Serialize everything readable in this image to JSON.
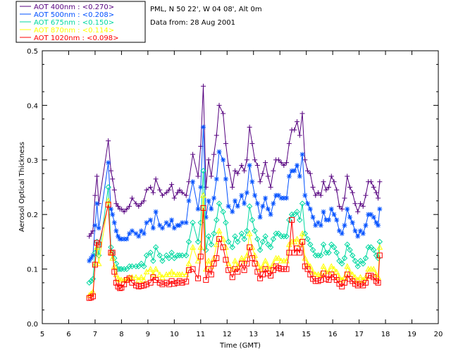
{
  "info": {
    "site": "PML, N 50 22', W 04 08', Alt 0m",
    "date": "Data from: 28 Aug 2001"
  },
  "chart_data": {
    "type": "line",
    "title": "",
    "xlabel": "Time (GMT)",
    "ylabel": "Aerosol Optical Thickness",
    "xlim": [
      5,
      20
    ],
    "ylim": [
      0.0,
      0.5
    ],
    "xticks": [
      5,
      6,
      7,
      8,
      9,
      10,
      11,
      12,
      13,
      14,
      15,
      16,
      17,
      18,
      19,
      20
    ],
    "yticks": [
      "0.0",
      "0.1",
      "0.2",
      "0.3",
      "0.4",
      "0.5"
    ],
    "x": [
      6.78,
      6.85,
      6.92,
      7.0,
      7.07,
      7.14,
      7.5,
      7.6,
      7.66,
      7.73,
      7.8,
      7.87,
      7.94,
      8.0,
      8.1,
      8.2,
      8.3,
      8.4,
      8.55,
      8.65,
      8.75,
      8.85,
      8.95,
      9.1,
      9.2,
      9.3,
      9.45,
      9.55,
      9.7,
      9.8,
      9.9,
      10.0,
      10.12,
      10.2,
      10.3,
      10.45,
      10.55,
      10.7,
      10.9,
      11.0,
      11.1,
      11.2,
      11.3,
      11.4,
      11.5,
      11.6,
      11.7,
      11.85,
      11.95,
      12.05,
      12.2,
      12.3,
      12.4,
      12.55,
      12.65,
      12.75,
      12.85,
      12.95,
      13.05,
      13.15,
      13.25,
      13.35,
      13.45,
      13.55,
      13.65,
      13.75,
      13.85,
      13.95,
      14.05,
      14.15,
      14.25,
      14.35,
      14.45,
      14.55,
      14.65,
      14.75,
      14.85,
      14.95,
      15.05,
      15.15,
      15.25,
      15.35,
      15.45,
      15.55,
      15.65,
      15.75,
      15.85,
      15.95,
      16.05,
      16.15,
      16.25,
      16.35,
      16.45,
      16.55,
      16.65,
      16.75,
      16.85,
      16.95,
      17.05,
      17.15,
      17.25,
      17.35,
      17.45,
      17.55,
      17.65,
      17.72,
      17.78
    ],
    "series": [
      {
        "name": "AOT  400nm : <0.270>",
        "color": "#55007f",
        "marker": "plus",
        "values": [
          0.16,
          0.165,
          0.17,
          0.235,
          0.27,
          0.22,
          0.335,
          0.28,
          0.265,
          0.245,
          0.22,
          0.215,
          0.21,
          0.21,
          0.205,
          0.21,
          0.215,
          0.23,
          0.22,
          0.215,
          0.22,
          0.225,
          0.245,
          0.25,
          0.24,
          0.265,
          0.245,
          0.235,
          0.24,
          0.245,
          0.255,
          0.23,
          0.24,
          0.245,
          0.24,
          0.235,
          0.26,
          0.31,
          0.27,
          0.325,
          0.435,
          0.25,
          0.3,
          0.27,
          0.31,
          0.345,
          0.4,
          0.385,
          0.33,
          0.29,
          0.25,
          0.28,
          0.275,
          0.29,
          0.28,
          0.3,
          0.36,
          0.33,
          0.3,
          0.29,
          0.26,
          0.275,
          0.295,
          0.27,
          0.25,
          0.28,
          0.3,
          0.3,
          0.295,
          0.29,
          0.295,
          0.33,
          0.355,
          0.355,
          0.37,
          0.345,
          0.385,
          0.3,
          0.28,
          0.275,
          0.25,
          0.235,
          0.24,
          0.235,
          0.26,
          0.245,
          0.25,
          0.27,
          0.26,
          0.245,
          0.215,
          0.21,
          0.23,
          0.27,
          0.25,
          0.24,
          0.22,
          0.205,
          0.22,
          0.215,
          0.235,
          0.26,
          0.26,
          0.25,
          0.24,
          0.23,
          0.26
        ]
      },
      {
        "name": "AOT  500nm : <0.208>",
        "color": "#0050ff",
        "marker": "star",
        "values": [
          0.115,
          0.12,
          0.125,
          0.18,
          0.22,
          0.175,
          0.295,
          0.21,
          0.2,
          0.185,
          0.17,
          0.16,
          0.155,
          0.155,
          0.155,
          0.155,
          0.165,
          0.17,
          0.165,
          0.16,
          0.17,
          0.165,
          0.185,
          0.19,
          0.175,
          0.205,
          0.18,
          0.175,
          0.185,
          0.18,
          0.19,
          0.175,
          0.18,
          0.18,
          0.185,
          0.185,
          0.225,
          0.26,
          0.21,
          0.25,
          0.36,
          0.195,
          0.225,
          0.21,
          0.23,
          0.265,
          0.315,
          0.3,
          0.265,
          0.215,
          0.205,
          0.225,
          0.215,
          0.235,
          0.22,
          0.24,
          0.29,
          0.26,
          0.235,
          0.22,
          0.195,
          0.215,
          0.23,
          0.21,
          0.2,
          0.22,
          0.235,
          0.235,
          0.23,
          0.23,
          0.23,
          0.27,
          0.28,
          0.28,
          0.29,
          0.27,
          0.31,
          0.235,
          0.22,
          0.21,
          0.195,
          0.18,
          0.185,
          0.18,
          0.205,
          0.19,
          0.19,
          0.21,
          0.2,
          0.19,
          0.17,
          0.165,
          0.18,
          0.21,
          0.195,
          0.185,
          0.17,
          0.16,
          0.17,
          0.165,
          0.18,
          0.2,
          0.2,
          0.195,
          0.185,
          0.18,
          0.21
        ]
      },
      {
        "name": "AOT  675nm : <0.150>",
        "color": "#00d8a0",
        "marker": "diamond",
        "values": [
          0.075,
          0.078,
          0.082,
          0.13,
          0.15,
          0.125,
          0.25,
          0.14,
          0.13,
          0.12,
          0.11,
          0.1,
          0.1,
          0.1,
          0.1,
          0.1,
          0.105,
          0.105,
          0.105,
          0.105,
          0.11,
          0.105,
          0.125,
          0.13,
          0.115,
          0.14,
          0.125,
          0.115,
          0.125,
          0.12,
          0.13,
          0.12,
          0.125,
          0.125,
          0.125,
          0.125,
          0.15,
          0.185,
          0.15,
          0.185,
          0.28,
          0.135,
          0.16,
          0.145,
          0.165,
          0.19,
          0.22,
          0.205,
          0.185,
          0.15,
          0.14,
          0.16,
          0.15,
          0.165,
          0.155,
          0.17,
          0.215,
          0.19,
          0.17,
          0.155,
          0.135,
          0.15,
          0.16,
          0.145,
          0.14,
          0.155,
          0.165,
          0.165,
          0.16,
          0.16,
          0.16,
          0.19,
          0.2,
          0.2,
          0.205,
          0.19,
          0.22,
          0.165,
          0.155,
          0.145,
          0.135,
          0.125,
          0.125,
          0.125,
          0.145,
          0.13,
          0.13,
          0.145,
          0.14,
          0.13,
          0.115,
          0.11,
          0.12,
          0.145,
          0.135,
          0.125,
          0.115,
          0.105,
          0.115,
          0.11,
          0.12,
          0.14,
          0.14,
          0.135,
          0.125,
          0.12,
          0.15
        ]
      },
      {
        "name": "AOT  870nm : <0.114>",
        "color": "#ffff00",
        "marker": "triangle",
        "values": [
          0.052,
          0.055,
          0.058,
          0.11,
          0.14,
          0.11,
          0.225,
          0.13,
          0.12,
          0.105,
          0.09,
          0.082,
          0.08,
          0.08,
          0.08,
          0.08,
          0.085,
          0.085,
          0.085,
          0.08,
          0.085,
          0.08,
          0.095,
          0.1,
          0.09,
          0.1,
          0.09,
          0.085,
          0.09,
          0.09,
          0.095,
          0.09,
          0.09,
          0.09,
          0.09,
          0.09,
          0.11,
          0.14,
          0.115,
          0.14,
          0.235,
          0.1,
          0.115,
          0.105,
          0.12,
          0.145,
          0.17,
          0.155,
          0.14,
          0.11,
          0.1,
          0.115,
          0.105,
          0.12,
          0.115,
          0.125,
          0.165,
          0.14,
          0.125,
          0.11,
          0.1,
          0.105,
          0.115,
          0.105,
          0.1,
          0.11,
          0.12,
          0.12,
          0.115,
          0.115,
          0.115,
          0.145,
          0.15,
          0.15,
          0.155,
          0.145,
          0.165,
          0.12,
          0.11,
          0.105,
          0.095,
          0.09,
          0.09,
          0.09,
          0.105,
          0.095,
          0.095,
          0.105,
          0.1,
          0.095,
          0.085,
          0.08,
          0.085,
          0.105,
          0.095,
          0.09,
          0.085,
          0.08,
          0.085,
          0.08,
          0.085,
          0.1,
          0.1,
          0.1,
          0.09,
          0.085,
          0.14
        ]
      },
      {
        "name": "AOT 1020nm : <0.098>",
        "color": "#ff0000",
        "marker": "square",
        "values": [
          0.047,
          0.048,
          0.05,
          0.108,
          0.148,
          0.145,
          0.218,
          0.13,
          0.13,
          0.095,
          0.075,
          0.068,
          0.065,
          0.066,
          0.072,
          0.08,
          0.083,
          0.075,
          0.07,
          0.068,
          0.069,
          0.07,
          0.072,
          0.075,
          0.085,
          0.08,
          0.075,
          0.072,
          0.075,
          0.072,
          0.078,
          0.073,
          0.075,
          0.078,
          0.075,
          0.077,
          0.098,
          0.1,
          0.083,
          0.123,
          0.212,
          0.08,
          0.1,
          0.09,
          0.11,
          0.12,
          0.155,
          0.14,
          0.117,
          0.098,
          0.085,
          0.1,
          0.095,
          0.11,
          0.098,
          0.11,
          0.14,
          0.12,
          0.11,
          0.095,
          0.083,
          0.09,
          0.1,
          0.092,
          0.088,
          0.098,
          0.105,
          0.102,
          0.1,
          0.1,
          0.1,
          0.13,
          0.19,
          0.13,
          0.138,
          0.13,
          0.15,
          0.105,
          0.1,
          0.09,
          0.082,
          0.078,
          0.078,
          0.08,
          0.092,
          0.082,
          0.08,
          0.09,
          0.085,
          0.08,
          0.073,
          0.068,
          0.075,
          0.09,
          0.082,
          0.078,
          0.073,
          0.07,
          0.073,
          0.07,
          0.075,
          0.088,
          0.088,
          0.085,
          0.078,
          0.075,
          0.125
        ]
      }
    ]
  }
}
